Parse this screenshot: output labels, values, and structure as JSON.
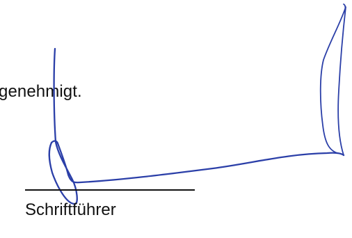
{
  "document": {
    "approval_text": "genehmigt.",
    "role_label": "Schriftführer",
    "colors": {
      "text": "#111111",
      "signature_ink": "#2b3fa8",
      "background": "#ffffff"
    }
  }
}
